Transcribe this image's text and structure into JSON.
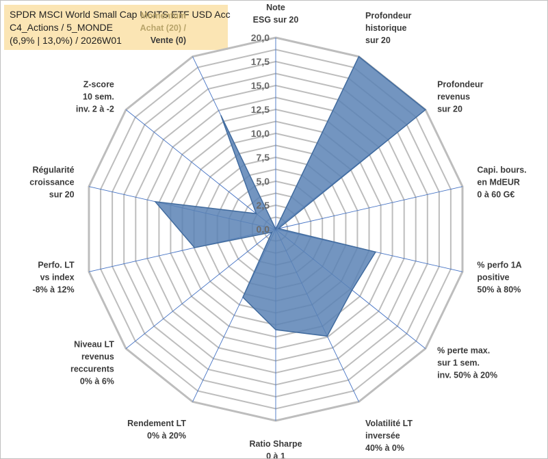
{
  "title_box": {
    "line1": "SPDR MSCI World Small Cap UCITS ETF USD Acc",
    "line2": "C4_Actions / 5_MONDE",
    "line3": "(6,9% | 13,0%) / 2026W01"
  },
  "colors": {
    "fill": "#5b82b5",
    "stroke": "#416b9e",
    "grid": "#bdbdbd",
    "spoke": "#4472c4",
    "title_bg": "#fbe5b4"
  },
  "chart_data": {
    "type": "radar",
    "rmin": 0,
    "rmax": 20,
    "rstep": 2.5,
    "rings_count": 16,
    "tick_labels": [
      "0,0",
      "2,5",
      "5,0",
      "7,5",
      "10,0",
      "12,5",
      "15,0",
      "17,5",
      "20,0"
    ],
    "axes": [
      {
        "label": [
          "Note",
          "ESG sur 20"
        ],
        "value": 0
      },
      {
        "label": [
          "Profondeur",
          "historique",
          "sur 20"
        ],
        "value": 20
      },
      {
        "label": [
          "Profondeur",
          "revenus",
          "sur 20"
        ],
        "value": 20
      },
      {
        "label": [
          "Capi. bours.",
          "en MdEUR",
          "0 à 60 G€"
        ],
        "value": 0.3
      },
      {
        "label": [
          "% perfo 1A",
          "positive",
          "50% à 80%"
        ],
        "value": 10.7
      },
      {
        "label": [
          "% perte max.",
          "sur 1 sem.",
          "inv. 50% à 20%"
        ],
        "value": 10.2
      },
      {
        "label": [
          "Volatilité LT",
          "inversée",
          "40% à 0%"
        ],
        "value": 12.4
      },
      {
        "label": [
          "Ratio Sharpe",
          "0 à 1"
        ],
        "value": 10.5
      },
      {
        "label": [
          "Rendement LT",
          "0% à 20%"
        ],
        "value": 7.9
      },
      {
        "label": [
          "Niveau LT",
          "revenus",
          "reccurents",
          "0% à 6%"
        ],
        "value": 0.5
      },
      {
        "label": [
          "Perfo. LT",
          "vs index",
          "-8% à 12%"
        ],
        "value": 8.7
      },
      {
        "label": [
          "Régularité",
          "croissance",
          "sur 20"
        ],
        "value": 12.9
      },
      {
        "label": [
          "Z-score",
          "10 sem.",
          "inv. 2 à -2"
        ],
        "value": 2.6
      },
      {
        "label": [
          "Momentum",
          "Achat (20) /",
          "Vente (0)"
        ],
        "value": 13.2
      }
    ]
  }
}
